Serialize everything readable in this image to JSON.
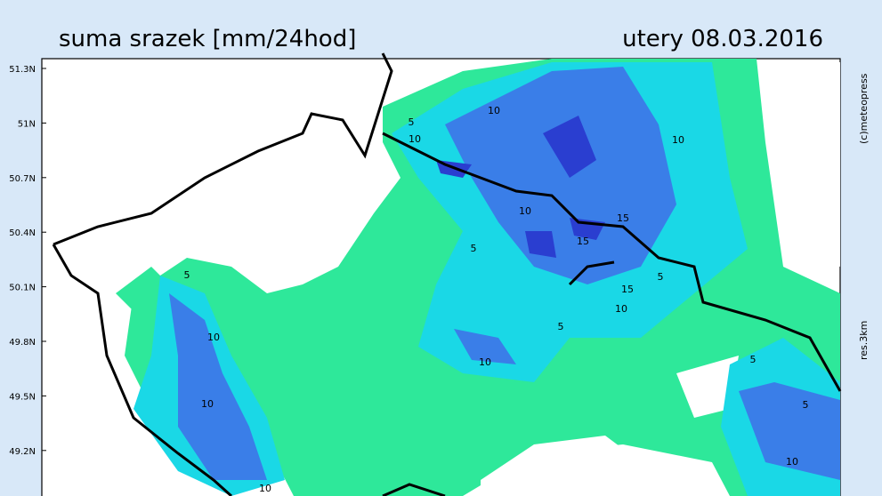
{
  "header": {
    "title": "suma srazek [mm/24hod]",
    "date": "utery 08.03.2016"
  },
  "side": {
    "copyright": "(c)meteopress",
    "resolution": "res.3km"
  },
  "latitude_labels": [
    "51.3N",
    "51N",
    "50.7N",
    "50.4N",
    "50.1N",
    "49.8N",
    "49.5N",
    "49.2N"
  ],
  "contour_labels": [
    "5",
    "10",
    "10",
    "10",
    "10",
    "15",
    "15",
    "5",
    "15",
    "10",
    "5",
    "5",
    "10",
    "10",
    "5",
    "10",
    "10",
    "5",
    "5",
    "10"
  ]
}
